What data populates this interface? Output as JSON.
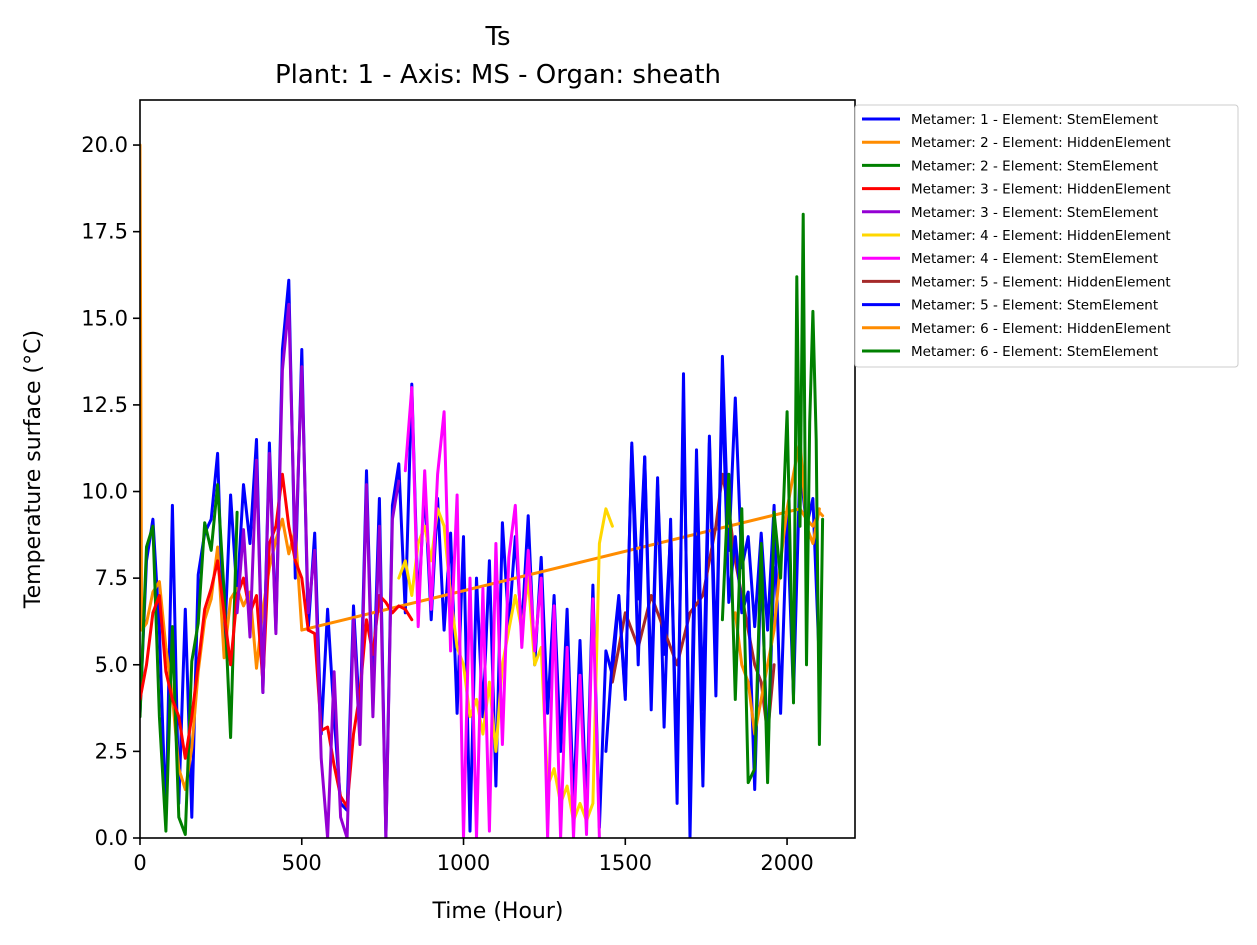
{
  "chart_data": {
    "type": "line",
    "title": "Ts",
    "subtitle": "Plant: 1 - Axis: MS - Organ: sheath",
    "xlabel": "Time (Hour)",
    "ylabel": "Temperature surface (°C)",
    "xlim": [
      0,
      2210
    ],
    "ylim": [
      0,
      21.3
    ],
    "xticks": [
      0,
      500,
      1000,
      1500,
      2000
    ],
    "xtick_labels": [
      "0",
      "500",
      "1000",
      "1500",
      "2000"
    ],
    "yticks": [
      0,
      2.5,
      5,
      7.5,
      10,
      12.5,
      15,
      17.5,
      20
    ],
    "ytick_labels": [
      "0.0",
      "2.5",
      "5.0",
      "7.5",
      "10.0",
      "12.5",
      "15.0",
      "17.5",
      "20.0"
    ],
    "grid": false,
    "legend_position": "outside-right",
    "series": [
      {
        "name": "Metamer: 1 - Element: StemElement",
        "color": "#0000ff",
        "x": [
          0,
          20,
          40,
          60,
          80,
          100,
          120,
          140,
          160,
          180,
          200,
          220,
          240,
          260,
          280,
          300,
          320,
          340,
          360,
          380,
          400,
          420,
          440,
          460,
          480,
          500,
          520,
          540,
          560,
          580,
          600,
          620,
          640,
          660,
          680,
          700,
          720,
          740,
          760,
          780,
          800,
          820,
          840,
          860,
          880,
          900,
          920,
          940,
          960,
          980,
          1000,
          1020,
          1040,
          1060,
          1080,
          1100,
          1120,
          1140,
          1160,
          1180,
          1200,
          1220,
          1240,
          1260,
          1280,
          1300,
          1320,
          1340,
          1360,
          1380,
          1400,
          1420,
          1440,
          1460,
          1480,
          1500,
          1520,
          1540,
          1560,
          1580,
          1600,
          1620,
          1640,
          1660,
          1680,
          1700,
          1720,
          1740,
          1760,
          1780,
          1800,
          1820,
          1840,
          1860,
          1880,
          1900,
          1920,
          1940,
          1960,
          1980,
          2000,
          2020,
          2040,
          2060,
          2080,
          2100
        ],
        "y": [
          3.6,
          8.0,
          9.2,
          6.0,
          0.5,
          9.6,
          1.0,
          6.6,
          0.6,
          7.6,
          8.8,
          9.2,
          11.1,
          5.3,
          9.9,
          7.0,
          10.2,
          8.5,
          11.5,
          4.2,
          11.4,
          6.0,
          14.1,
          16.1,
          7.5,
          14.1,
          6.0,
          8.8,
          3.0,
          6.6,
          3.5,
          1.0,
          0.8,
          6.7,
          3.3,
          10.6,
          3.9,
          9.8,
          0.0,
          9.6,
          10.8,
          6.5,
          13.1,
          6.6,
          10.1,
          6.3,
          9.8,
          6.0,
          8.8,
          3.6,
          8.7,
          0.2,
          7.5,
          3.5,
          8.0,
          1.5,
          9.1,
          6.1,
          8.7,
          6.0,
          9.3,
          5.0,
          8.1,
          3.6,
          7.0,
          2.5,
          6.6,
          0.9,
          5.7,
          0.8,
          7.3,
          0.3,
          5.4,
          4.7,
          6.9,
          4.0,
          11.4,
          6.9,
          11.0,
          4.3,
          10.4,
          3.2,
          9.2,
          1.0,
          13.4,
          0.0,
          9.8,
          1.5,
          11.4,
          4.1,
          13.9,
          8.3,
          12.7,
          7.8,
          8.7,
          6.1,
          8.8,
          6.0,
          9.6,
          3.6,
          9.3,
          4.1,
          10.8,
          9.0,
          9.8,
          5.0
        ]
      },
      {
        "name": "Metamer: 2 - Element: HiddenElement",
        "color": "#ff8c00",
        "x": [
          0,
          5,
          20,
          40,
          60,
          80,
          100,
          120,
          140,
          160,
          180,
          200,
          220,
          240,
          260,
          280,
          300,
          320,
          340,
          360,
          380,
          400,
          420,
          440,
          460,
          480,
          500,
          2040,
          2060,
          2080,
          2100,
          2110
        ],
        "y": [
          20.0,
          6.0,
          6.2,
          7.1,
          7.4,
          5.5,
          4.1,
          2.0,
          1.4,
          2.6,
          4.8,
          6.3,
          6.9,
          8.4,
          5.2,
          6.9,
          7.2,
          6.7,
          7.1,
          4.9,
          6.6,
          7.8,
          8.6,
          9.2,
          8.2,
          8.9,
          6.0,
          9.5,
          9.2,
          9.0,
          9.4,
          9.3
        ]
      },
      {
        "name": "Metamer: 2 - Element: StemElement",
        "color": "#008000",
        "x": [
          0,
          20,
          40,
          60,
          80,
          100,
          120,
          140,
          160,
          180,
          200,
          220,
          240,
          260,
          280,
          300
        ],
        "y": [
          3.5,
          8.4,
          9.0,
          3.5,
          0.2,
          6.1,
          0.6,
          0.1,
          5.1,
          6.2,
          9.1,
          8.3,
          10.2,
          7.1,
          2.9,
          9.4
        ]
      },
      {
        "name": "Metamer: 3 - Element: HiddenElement",
        "color": "#ff0000",
        "x": [
          0,
          20,
          40,
          60,
          80,
          100,
          120,
          140,
          160,
          180,
          200,
          220,
          240,
          260,
          280,
          300,
          320,
          340,
          360,
          380,
          400,
          420,
          440,
          460,
          480,
          500,
          520,
          540,
          560,
          580,
          600,
          620,
          640,
          660,
          680,
          700,
          720,
          740,
          760,
          780,
          800,
          820,
          840
        ],
        "y": [
          4.0,
          5.0,
          6.5,
          7.0,
          4.8,
          4.0,
          3.5,
          2.3,
          3.5,
          5.0,
          6.6,
          7.2,
          8.0,
          6.5,
          5.0,
          7.0,
          7.5,
          6.5,
          7.0,
          4.5,
          8.5,
          9.0,
          10.5,
          9.0,
          8.0,
          7.5,
          6.0,
          5.9,
          3.1,
          3.2,
          2.1,
          1.2,
          0.9,
          3.0,
          4.2,
          6.3,
          5.3,
          7.0,
          6.8,
          6.5,
          6.7,
          6.6,
          6.3
        ]
      },
      {
        "name": "Metamer: 3 - Element: StemElement",
        "color": "#9400d3",
        "x": [
          300,
          320,
          340,
          360,
          380,
          400,
          420,
          440,
          460,
          480,
          500,
          520,
          540,
          560,
          580,
          600,
          620,
          640,
          660,
          680,
          700,
          720,
          740,
          760,
          780,
          800
        ],
        "y": [
          6.5,
          8.9,
          5.8,
          10.9,
          4.2,
          11.1,
          5.9,
          13.5,
          15.4,
          8.1,
          13.6,
          6.5,
          8.3,
          2.3,
          0.0,
          4.8,
          0.6,
          0.0,
          6.3,
          2.7,
          10.2,
          3.5,
          9.0,
          0.0,
          9.2,
          10.3
        ]
      },
      {
        "name": "Metamer: 4 - Element: HiddenElement",
        "color": "#ffd700",
        "x": [
          800,
          820,
          840,
          860,
          880,
          900,
          920,
          940,
          960,
          980,
          1000,
          1020,
          1040,
          1060,
          1080,
          1100,
          1120,
          1140,
          1160,
          1180,
          1200,
          1220,
          1240,
          1260,
          1280,
          1300,
          1320,
          1340,
          1360,
          1380,
          1400,
          1420,
          1440,
          1460
        ],
        "y": [
          7.5,
          8.0,
          7.0,
          8.5,
          9.0,
          8.0,
          9.5,
          9.0,
          7.0,
          5.5,
          5.0,
          3.5,
          4.0,
          3.0,
          4.5,
          2.5,
          5.0,
          6.0,
          7.0,
          6.0,
          7.5,
          5.0,
          5.5,
          1.5,
          2.0,
          1.0,
          1.5,
          0.5,
          1.0,
          0.5,
          1.0,
          8.5,
          9.5,
          9.0
        ]
      },
      {
        "name": "Metamer: 4 - Element: StemElement",
        "color": "#ff00ff",
        "x": [
          820,
          840,
          860,
          880,
          900,
          920,
          940,
          960,
          980,
          1000,
          1020,
          1040,
          1060,
          1080,
          1100,
          1120,
          1140,
          1160,
          1180,
          1200,
          1220,
          1240,
          1260,
          1280,
          1300,
          1320,
          1340,
          1360,
          1380,
          1400,
          1420
        ],
        "y": [
          10.6,
          13.0,
          6.1,
          10.6,
          6.6,
          10.5,
          12.3,
          5.4,
          9.9,
          0.0,
          7.5,
          0.0,
          7.2,
          0.2,
          8.5,
          2.7,
          8.1,
          9.6,
          5.5,
          8.3,
          5.4,
          7.5,
          0.0,
          6.7,
          0.0,
          5.5,
          0.0,
          4.7,
          0.1,
          6.9,
          0.0
        ]
      },
      {
        "name": "Metamer: 5 - Element: HiddenElement",
        "color": "#a52a2a",
        "x": [
          1460,
          1500,
          1540,
          1580,
          1620,
          1660,
          1700,
          1740,
          1780,
          1800,
          1820,
          1840,
          1860,
          1880,
          1900,
          1920,
          1940,
          1960
        ],
        "y": [
          4.5,
          6.5,
          5.5,
          7.0,
          6.0,
          5.0,
          6.5,
          7.0,
          9.0,
          10.5,
          9.5,
          8.0,
          7.0,
          6.0,
          5.0,
          4.5,
          3.0,
          5.0
        ]
      },
      {
        "name": "Metamer: 5 - Element: StemElement",
        "color": "#0000ff",
        "x": [
          1440,
          1460,
          1480,
          1500,
          1520,
          1540,
          1560,
          1580,
          1600,
          1620,
          1640,
          1660,
          1680,
          1700,
          1720,
          1740,
          1760,
          1780,
          1800,
          1820,
          1840,
          1860,
          1880,
          1900,
          1920,
          1940,
          1960
        ],
        "y": [
          2.5,
          5.2,
          7.0,
          4.1,
          11.3,
          5.0,
          11.0,
          3.7,
          10.2,
          5.3,
          8.8,
          2.1,
          12.5,
          1.4,
          11.2,
          3.7,
          11.6,
          5.2,
          13.0,
          6.8,
          8.7,
          6.5,
          7.1,
          1.4,
          8.0,
          2.3,
          7.8
        ]
      },
      {
        "name": "Metamer: 6 - Element: HiddenElement",
        "color": "#ff8c00",
        "x": [
          1840,
          1860,
          1880,
          1900,
          1920,
          1940,
          1960,
          1980,
          2000,
          2020,
          2040,
          2060,
          2080,
          2100
        ],
        "y": [
          6.5,
          5.0,
          4.5,
          3.0,
          4.0,
          5.0,
          6.0,
          8.0,
          9.5,
          10.5,
          11.5,
          9.0,
          8.5,
          9.5
        ]
      },
      {
        "name": "Metamer: 6 - Element: StemElement",
        "color": "#008000",
        "x": [
          1800,
          1820,
          1840,
          1860,
          1880,
          1900,
          1920,
          1940,
          1960,
          1980,
          2000,
          2020,
          2030,
          2040,
          2050,
          2060,
          2070,
          2080,
          2090,
          2100,
          2110
        ],
        "y": [
          6.3,
          10.5,
          4.0,
          9.5,
          1.6,
          2.0,
          8.5,
          1.6,
          9.4,
          7.5,
          12.3,
          3.9,
          16.2,
          9.0,
          18.0,
          5.0,
          12.0,
          15.2,
          11.5,
          2.7,
          9.2
        ]
      }
    ]
  }
}
